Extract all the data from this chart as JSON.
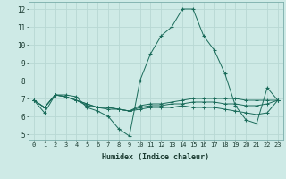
{
  "xlabel": "Humidex (Indice chaleur)",
  "bg_color": "#ceeae6",
  "grid_color": "#b8d8d4",
  "line_color": "#1a6b5a",
  "xlim": [
    -0.5,
    23.5
  ],
  "ylim": [
    4.7,
    12.4
  ],
  "yticks": [
    5,
    6,
    7,
    8,
    9,
    10,
    11,
    12
  ],
  "xtick_labels": [
    "0",
    "1",
    "2",
    "3",
    "4",
    "5",
    "6",
    "7",
    "8",
    "9",
    "10",
    "11",
    "12",
    "13",
    "14",
    "15",
    "16",
    "17",
    "18",
    "19",
    "20",
    "21",
    "22",
    "23"
  ],
  "series": [
    [
      6.9,
      6.2,
      7.2,
      7.2,
      7.1,
      6.5,
      6.3,
      6.0,
      5.3,
      4.9,
      8.0,
      9.5,
      10.5,
      11.0,
      12.0,
      12.0,
      10.5,
      9.7,
      8.4,
      6.6,
      5.8,
      5.6,
      7.6,
      6.9
    ],
    [
      6.9,
      6.5,
      7.2,
      7.1,
      6.9,
      6.6,
      6.5,
      6.5,
      6.4,
      6.3,
      6.6,
      6.7,
      6.7,
      6.8,
      6.9,
      7.0,
      7.0,
      7.0,
      7.0,
      7.0,
      6.9,
      6.9,
      6.9,
      6.9
    ],
    [
      6.9,
      6.5,
      7.2,
      7.1,
      6.9,
      6.7,
      6.5,
      6.4,
      6.4,
      6.3,
      6.5,
      6.6,
      6.6,
      6.7,
      6.7,
      6.8,
      6.8,
      6.8,
      6.7,
      6.7,
      6.6,
      6.6,
      6.7,
      6.9
    ],
    [
      6.9,
      6.5,
      7.2,
      7.1,
      6.9,
      6.7,
      6.5,
      6.5,
      6.4,
      6.3,
      6.4,
      6.5,
      6.5,
      6.5,
      6.6,
      6.5,
      6.5,
      6.5,
      6.4,
      6.3,
      6.2,
      6.1,
      6.2,
      6.9
    ]
  ]
}
